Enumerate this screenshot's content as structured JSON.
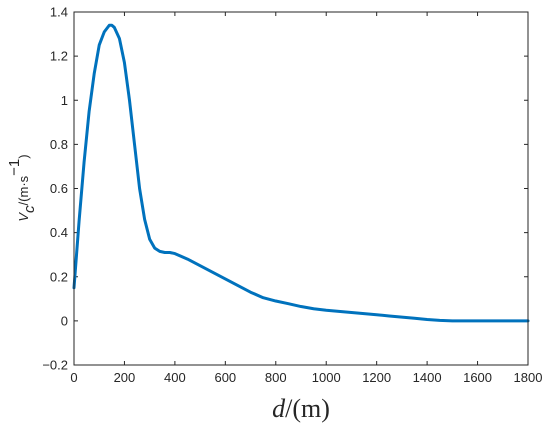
{
  "chart_data": {
    "type": "line",
    "xlabel": {
      "main": "d",
      "unit": "/(m)"
    },
    "ylabel": {
      "main": "V",
      "sub": "c",
      "unit": "/(m·s",
      "exp": "−1",
      "close": ")"
    },
    "xlim": [
      0,
      1800
    ],
    "ylim": [
      -0.2,
      1.4
    ],
    "xticks": [
      0,
      200,
      400,
      600,
      800,
      1000,
      1200,
      1400,
      1600,
      1800
    ],
    "yticks": [
      -0.2,
      0,
      0.2,
      0.4,
      0.6,
      0.8,
      1,
      1.2,
      1.4
    ],
    "xtick_labels": [
      "0",
      "200",
      "400",
      "600",
      "800",
      "1000",
      "1200",
      "1400",
      "1600",
      "1800"
    ],
    "ytick_labels": [
      "−0.2",
      "0",
      "0.2",
      "0.4",
      "0.6",
      "0.8",
      "1",
      "1.2",
      "1.4"
    ],
    "grid": false,
    "series": [
      {
        "color": "#0072BD",
        "x": [
          0,
          20,
          40,
          60,
          80,
          100,
          120,
          140,
          150,
          160,
          180,
          200,
          220,
          240,
          260,
          280,
          300,
          320,
          340,
          360,
          380,
          400,
          450,
          500,
          550,
          600,
          650,
          700,
          750,
          800,
          850,
          900,
          950,
          1000,
          1050,
          1100,
          1150,
          1200,
          1250,
          1300,
          1350,
          1400,
          1450,
          1500,
          1550,
          1600,
          1650,
          1700,
          1750,
          1800
        ],
        "y": [
          0.15,
          0.45,
          0.72,
          0.95,
          1.12,
          1.25,
          1.31,
          1.34,
          1.34,
          1.33,
          1.28,
          1.17,
          1.0,
          0.8,
          0.6,
          0.46,
          0.37,
          0.33,
          0.315,
          0.31,
          0.31,
          0.305,
          0.28,
          0.25,
          0.22,
          0.19,
          0.16,
          0.13,
          0.105,
          0.09,
          0.078,
          0.065,
          0.055,
          0.048,
          0.043,
          0.038,
          0.033,
          0.028,
          0.022,
          0.017,
          0.012,
          0.006,
          0.002,
          0.0,
          0.0,
          0.0,
          0.0,
          0.0,
          0.0,
          0.0
        ]
      }
    ]
  }
}
